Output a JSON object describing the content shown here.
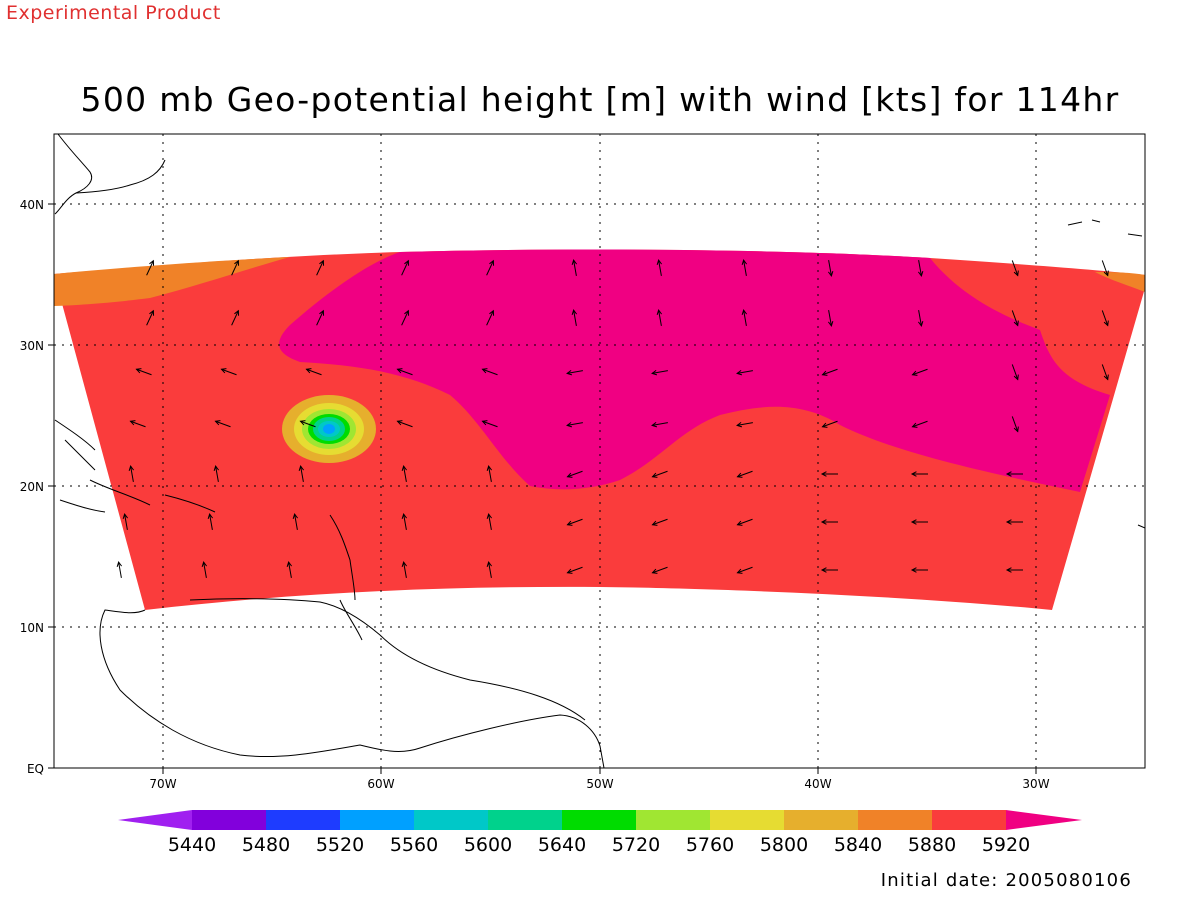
{
  "watermark": "Experimental Product",
  "title": "500 mb Geo-potential height [m] with wind [kts] for 114hr",
  "footer": "Initial date: 2005080106",
  "lat_labels": [
    "EQ",
    "10N",
    "20N",
    "30N",
    "40N"
  ],
  "lon_labels": [
    "70W",
    "60W",
    "50W",
    "40W",
    "30W"
  ],
  "colorbar": {
    "levels": [
      "5440",
      "5480",
      "5520",
      "5560",
      "5600",
      "5640",
      "5720",
      "5760",
      "5800",
      "5840",
      "5880",
      "5920"
    ],
    "colors": [
      "#a020f0",
      "#8200dc",
      "#1e3cff",
      "#00a0ff",
      "#00c8c8",
      "#00d28c",
      "#00dc00",
      "#a0e632",
      "#e6dc32",
      "#e6af2d",
      "#f08228",
      "#fa3c3c",
      "#f00082"
    ]
  },
  "field_colors": {
    "band_5880": "#f08228",
    "band_5920": "#fa3c3c",
    "band_above": "#f00082"
  },
  "low_center_colors": [
    "#e6af2d",
    "#e6dc32",
    "#a0e632",
    "#00dc00",
    "#00d28c",
    "#00c8c8",
    "#00a0ff"
  ]
}
